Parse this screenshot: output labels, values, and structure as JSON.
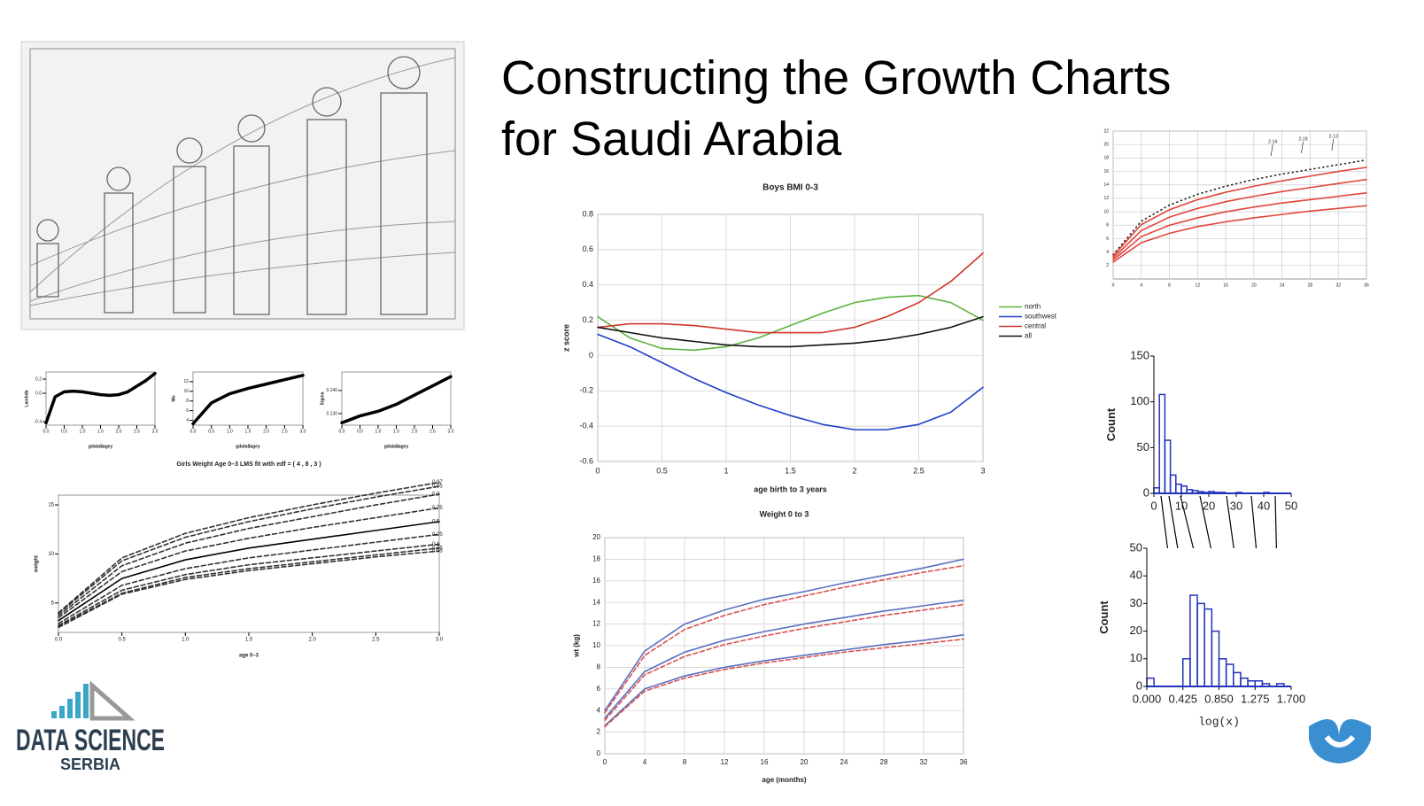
{
  "title_lines": [
    "Constructing the Growth Charts",
    "for Saudi Arabia"
  ],
  "logo": {
    "line1": "DATA SCIENCE",
    "line2": "SERBIA"
  },
  "chart_data": [
    {
      "type": "line",
      "title": "Boys BMI 0-3",
      "xlabel": "age birth to 3 years",
      "ylabel": "z score",
      "x": [
        0,
        0.25,
        0.5,
        0.75,
        1,
        1.25,
        1.5,
        1.75,
        2,
        2.25,
        2.5,
        2.75,
        3
      ],
      "xlim": [
        0,
        3
      ],
      "xticks": [
        0,
        0.5,
        1,
        1.5,
        2,
        2.5,
        3
      ],
      "ylim": [
        -0.6,
        0.8
      ],
      "yticks": [
        -0.6,
        -0.4,
        -0.2,
        0,
        0.2,
        0.4,
        0.6,
        0.8
      ],
      "grid": true,
      "legend": "right",
      "series": [
        {
          "name": "north",
          "color": "#5bb33c",
          "values": [
            0.22,
            0.1,
            0.04,
            0.03,
            0.05,
            0.1,
            0.17,
            0.24,
            0.3,
            0.33,
            0.34,
            0.3,
            0.2
          ]
        },
        {
          "name": "southwest",
          "color": "#1f3fc8",
          "values": [
            0.12,
            0.05,
            -0.04,
            -0.13,
            -0.21,
            -0.28,
            -0.34,
            -0.39,
            -0.42,
            -0.42,
            -0.39,
            -0.32,
            -0.18
          ]
        },
        {
          "name": "central",
          "color": "#d0362a",
          "values": [
            0.16,
            0.18,
            0.18,
            0.17,
            0.15,
            0.13,
            0.13,
            0.13,
            0.16,
            0.22,
            0.3,
            0.42,
            0.58
          ]
        },
        {
          "name": "all",
          "color": "#111111",
          "values": [
            0.16,
            0.13,
            0.1,
            0.08,
            0.06,
            0.05,
            0.05,
            0.06,
            0.07,
            0.09,
            0.12,
            0.16,
            0.22
          ]
        }
      ]
    },
    {
      "type": "line",
      "title": "Weight 0 to 3",
      "xlabel": "age (months)",
      "ylabel": "wt (kg)",
      "x": [
        0,
        4,
        8,
        12,
        16,
        20,
        24,
        28,
        32,
        36
      ],
      "xlim": [
        0,
        36
      ],
      "xticks": [
        0,
        4,
        8,
        12,
        16,
        20,
        24,
        28,
        32,
        36
      ],
      "ylim": [
        0,
        20
      ],
      "yticks": [
        0,
        2,
        4,
        6,
        8,
        10,
        12,
        14,
        16,
        18,
        20
      ],
      "grid": true,
      "series": [
        {
          "color": "#5a6fc0",
          "values": [
            4,
            9.5,
            12,
            13.3,
            14.3,
            15,
            15.8,
            16.5,
            17.2,
            18
          ]
        },
        {
          "color": "#5a6fc0",
          "values": [
            3.3,
            7.6,
            9.4,
            10.5,
            11.3,
            12,
            12.6,
            13.2,
            13.7,
            14.2
          ]
        },
        {
          "color": "#5a6fc0",
          "values": [
            2.6,
            6,
            7.2,
            8,
            8.6,
            9.1,
            9.6,
            10.1,
            10.5,
            11
          ]
        },
        {
          "color": "#d9534f",
          "dash": true,
          "values": [
            3.8,
            9.1,
            11.5,
            12.8,
            13.8,
            14.6,
            15.4,
            16.1,
            16.8,
            17.4
          ]
        },
        {
          "color": "#d9534f",
          "dash": true,
          "values": [
            3.1,
            7.3,
            9,
            10.1,
            10.9,
            11.6,
            12.2,
            12.8,
            13.3,
            13.8
          ]
        },
        {
          "color": "#d9534f",
          "dash": true,
          "values": [
            2.5,
            5.8,
            7,
            7.8,
            8.4,
            8.9,
            9.4,
            9.8,
            10.2,
            10.6
          ]
        }
      ]
    },
    {
      "type": "line",
      "annotations": [
        "2-14",
        "2-19",
        "2-13"
      ],
      "x": [
        0,
        4,
        8,
        12,
        16,
        20,
        24,
        28,
        32,
        36
      ],
      "xlim": [
        0,
        36
      ],
      "xticks": [
        0,
        4,
        8,
        12,
        16,
        20,
        24,
        28,
        32,
        36
      ],
      "ylim": [
        0,
        22
      ],
      "yticks": [
        2,
        4,
        6,
        8,
        10,
        12,
        14,
        16,
        18,
        20,
        22
      ],
      "grid": true,
      "series": [
        {
          "color": "#222222",
          "dotted": true,
          "values": [
            3.6,
            8.6,
            11,
            12.6,
            13.8,
            14.8,
            15.6,
            16.3,
            17,
            17.7
          ]
        },
        {
          "color": "#e0463a",
          "values": [
            3.4,
            8.1,
            10.3,
            11.8,
            12.9,
            13.8,
            14.6,
            15.3,
            16,
            16.6
          ]
        },
        {
          "color": "#e0463a",
          "values": [
            3.1,
            7.2,
            9.2,
            10.5,
            11.5,
            12.3,
            13,
            13.6,
            14.2,
            14.8
          ]
        },
        {
          "color": "#e0463a",
          "values": [
            2.8,
            6.3,
            8,
            9.1,
            10,
            10.7,
            11.3,
            11.8,
            12.3,
            12.8
          ]
        },
        {
          "color": "#e0463a",
          "values": [
            2.5,
            5.4,
            6.8,
            7.8,
            8.5,
            9.1,
            9.6,
            10.1,
            10.5,
            10.9
          ]
        }
      ]
    },
    {
      "type": "histogram",
      "ylabel": "Count",
      "color": "#2233bb",
      "bins": [
        0,
        2,
        4,
        6,
        8,
        10,
        12,
        14,
        16,
        18,
        20,
        22,
        24,
        26,
        28,
        30,
        32,
        34,
        36,
        38,
        40,
        42,
        44,
        46,
        48,
        50
      ],
      "values": [
        6,
        108,
        58,
        20,
        10,
        8,
        4,
        3,
        2,
        1,
        2,
        1,
        1,
        0,
        0,
        1,
        0,
        0,
        0,
        0,
        1,
        0,
        0,
        0,
        0
      ],
      "xlim": [
        0,
        50
      ],
      "xticks": [
        0,
        10,
        20,
        30,
        40,
        50
      ],
      "ylim": [
        0,
        150
      ],
      "yticks": [
        0,
        50,
        100,
        150
      ]
    },
    {
      "type": "histogram",
      "ylabel": "Count",
      "xlabel": "log(x)",
      "color": "#2233bb",
      "bins": [
        0,
        0.085,
        0.17,
        0.255,
        0.34,
        0.425,
        0.51,
        0.595,
        0.68,
        0.765,
        0.85,
        0.935,
        1.02,
        1.105,
        1.19,
        1.275,
        1.36,
        1.445,
        1.53,
        1.615,
        1.7
      ],
      "values": [
        3,
        0,
        0,
        0,
        0,
        10,
        33,
        30,
        28,
        20,
        10,
        8,
        5,
        3,
        2,
        2,
        1,
        0,
        1,
        0
      ],
      "xlim": [
        0,
        1.7
      ],
      "xticks": [
        {
          "value": 0,
          "label": "0.000"
        },
        {
          "value": 0.425,
          "label": "0.425"
        },
        {
          "value": 0.85,
          "label": "0.850"
        },
        {
          "value": 1.275,
          "label": "1.275"
        },
        {
          "value": 1.7,
          "label": "1.700"
        }
      ],
      "ylim": [
        0,
        50
      ],
      "yticks": [
        0,
        10,
        20,
        30,
        40,
        50
      ]
    },
    {
      "type": "line",
      "xlabel": "gdata$agey",
      "ylabel": "Lambda",
      "points": true,
      "x": [
        0,
        0.25,
        0.5,
        0.75,
        1,
        1.25,
        1.5,
        1.75,
        2,
        2.25,
        2.5,
        2.75,
        3
      ],
      "xlim": [
        0,
        3
      ],
      "xticks": [
        {
          "value": 0,
          "label": "0.0"
        },
        {
          "value": 0.5,
          "label": "0.5"
        },
        {
          "value": 1,
          "label": "1.0"
        },
        {
          "value": 1.5,
          "label": "1.5"
        },
        {
          "value": 2,
          "label": "2.0"
        },
        {
          "value": 2.5,
          "label": "2.5"
        },
        {
          "value": 3,
          "label": "3.0"
        }
      ],
      "ylim": [
        -0.45,
        0.3
      ],
      "yticks": [
        {
          "value": -0.4,
          "label": "-0.4"
        },
        {
          "value": 0,
          "label": "0.0"
        },
        {
          "value": 0.2,
          "label": "0.2"
        }
      ],
      "series": [
        {
          "color": "#000000",
          "values": [
            -0.42,
            -0.05,
            0.02,
            0.03,
            0.02,
            0,
            -0.02,
            -0.03,
            -0.02,
            0.02,
            0.1,
            0.18,
            0.28
          ]
        }
      ]
    },
    {
      "type": "line",
      "xlabel": "gdata$agey",
      "ylabel": "Mu",
      "points": true,
      "x": [
        0,
        0.5,
        1,
        1.5,
        2,
        2.5,
        3
      ],
      "xlim": [
        0,
        3
      ],
      "xticks": [
        {
          "value": 0,
          "label": "0.0"
        },
        {
          "value": 0.5,
          "label": "0.5"
        },
        {
          "value": 1,
          "label": "1.0"
        },
        {
          "value": 1.5,
          "label": "1.5"
        },
        {
          "value": 2,
          "label": "2.0"
        },
        {
          "value": 2.5,
          "label": "2.5"
        },
        {
          "value": 3,
          "label": "3.0"
        }
      ],
      "ylim": [
        3,
        14
      ],
      "yticks": [
        4,
        6,
        8,
        10,
        12
      ],
      "series": [
        {
          "color": "#000000",
          "values": [
            3.3,
            7.6,
            9.5,
            10.6,
            11.5,
            12.4,
            13.3
          ]
        }
      ]
    },
    {
      "type": "line",
      "xlabel": "gdata$agey",
      "ylabel": "Sigma",
      "points": true,
      "x": [
        0,
        0.5,
        1,
        1.5,
        2,
        2.5,
        3
      ],
      "xlim": [
        0,
        3
      ],
      "xticks": [
        {
          "value": 0,
          "label": "0.0"
        },
        {
          "value": 0.5,
          "label": "0.5"
        },
        {
          "value": 1,
          "label": "1.0"
        },
        {
          "value": 1.5,
          "label": "1.5"
        },
        {
          "value": 2,
          "label": "2.0"
        },
        {
          "value": 2.5,
          "label": "2.5"
        },
        {
          "value": 3,
          "label": "3.0"
        }
      ],
      "ylim": [
        0.125,
        0.148
      ],
      "yticks": [
        {
          "value": 0.13,
          "label": "0.130"
        },
        {
          "value": 0.14,
          "label": "0.140"
        }
      ],
      "series": [
        {
          "color": "#000000",
          "values": [
            0.126,
            0.129,
            0.131,
            0.134,
            0.138,
            0.142,
            0.146
          ]
        }
      ]
    },
    {
      "type": "line",
      "title": "Girls Weight Age 0–3 LMS fit with edf = ( 4 , 8 , 3 )",
      "xlabel": "age 0–3",
      "ylabel": "weight",
      "end_labels": true,
      "x": [
        0,
        0.5,
        1,
        1.5,
        2,
        2.5,
        3
      ],
      "xlim": [
        0,
        3
      ],
      "xticks": [
        {
          "value": 0,
          "label": "0.0"
        },
        {
          "value": 0.5,
          "label": "0.5"
        },
        {
          "value": 1,
          "label": "1.0"
        },
        {
          "value": 1.5,
          "label": "1.5"
        },
        {
          "value": 2,
          "label": "2.0"
        },
        {
          "value": 2.5,
          "label": "2.5"
        },
        {
          "value": 3,
          "label": "3.0"
        }
      ],
      "ylim": [
        2,
        16
      ],
      "yticks": [
        5,
        10,
        15
      ],
      "series": [
        {
          "name": "0.97",
          "color": "#333333",
          "dash": true,
          "values": [
            4,
            9.6,
            12.1,
            13.7,
            15,
            16.2,
            17.3
          ]
        },
        {
          "name": "0.95",
          "color": "#333333",
          "dash": true,
          "values": [
            3.9,
            9.3,
            11.7,
            13.3,
            14.6,
            15.8,
            16.9
          ]
        },
        {
          "name": "0.9",
          "color": "#333333",
          "dash": true,
          "values": [
            3.7,
            8.8,
            11.1,
            12.6,
            13.8,
            15,
            16.1
          ]
        },
        {
          "name": "0.75",
          "color": "#333333",
          "dash": true,
          "values": [
            3.5,
            8.2,
            10.3,
            11.6,
            12.7,
            13.7,
            14.7
          ]
        },
        {
          "name": "0.5",
          "color": "#000000",
          "values": [
            3.2,
            7.5,
            9.4,
            10.6,
            11.5,
            12.4,
            13.3
          ]
        },
        {
          "name": "0.25",
          "color": "#333333",
          "dash": true,
          "values": [
            2.9,
            6.8,
            8.5,
            9.6,
            10.4,
            11.2,
            12
          ]
        },
        {
          "name": "0.1",
          "color": "#333333",
          "dash": true,
          "values": [
            2.7,
            6.3,
            7.9,
            8.9,
            9.6,
            10.3,
            11
          ]
        },
        {
          "name": "0.05",
          "color": "#333333",
          "dash": true,
          "values": [
            2.6,
            6,
            7.6,
            8.5,
            9.2,
            9.9,
            10.6
          ]
        },
        {
          "name": "0.03",
          "color": "#333333",
          "dash": true,
          "values": [
            2.5,
            5.9,
            7.4,
            8.3,
            9,
            9.7,
            10.3
          ]
        }
      ]
    }
  ]
}
